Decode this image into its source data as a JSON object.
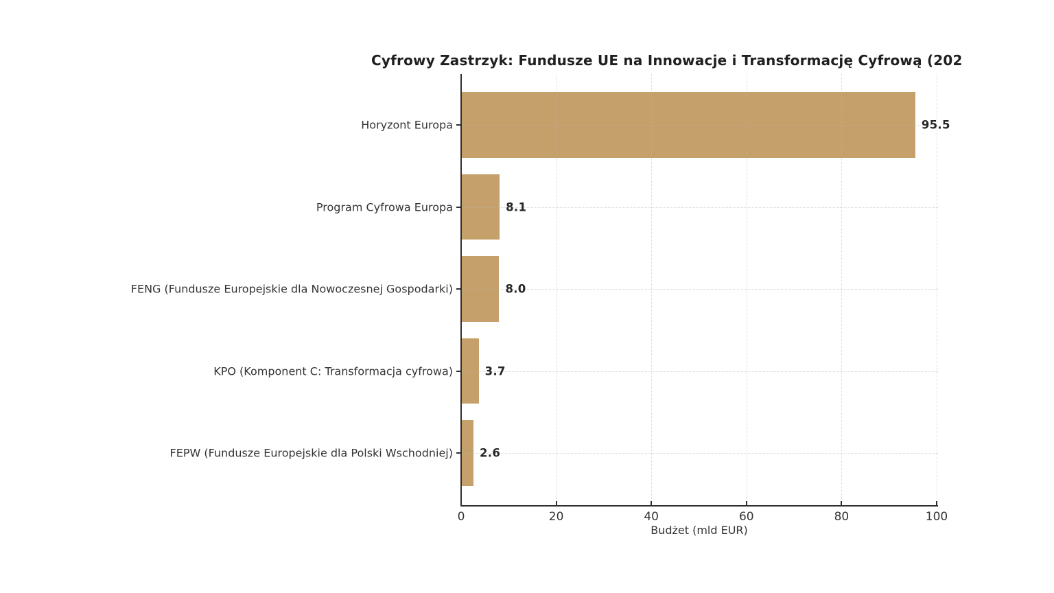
{
  "chart_data": {
    "type": "bar",
    "orientation": "horizontal",
    "title": "Cyfrowy Zastrzyk: Fundusze UE na Innowacje i Transformację Cyfrową (202",
    "xlabel": "Budżet (mld EUR)",
    "categories": [
      "Horyzont Europa",
      "Program Cyfrowa Europa",
      "FENG (Fundusze Europejskie dla Nowoczesnej Gospodarki)",
      "KPO (Komponent C: Transformacja cyfrowa)",
      "FEPW (Fundusze Europejskie dla Polski Wschodniej)"
    ],
    "values": [
      95.5,
      8.1,
      8.0,
      3.7,
      2.6
    ],
    "value_labels": [
      "95.5",
      "8.1",
      "8.0",
      "3.7",
      "2.6"
    ],
    "x_ticks": [
      0,
      20,
      40,
      60,
      80,
      100
    ],
    "xlim": [
      0,
      100.3
    ],
    "grid": true,
    "legend_position": "none",
    "colors": {
      "bar": "#c6a06a",
      "axis": "#2f2f2f",
      "text": "#333333",
      "title": "#1f1f1f",
      "value_label": "#262626",
      "background": "#ffffff"
    }
  }
}
